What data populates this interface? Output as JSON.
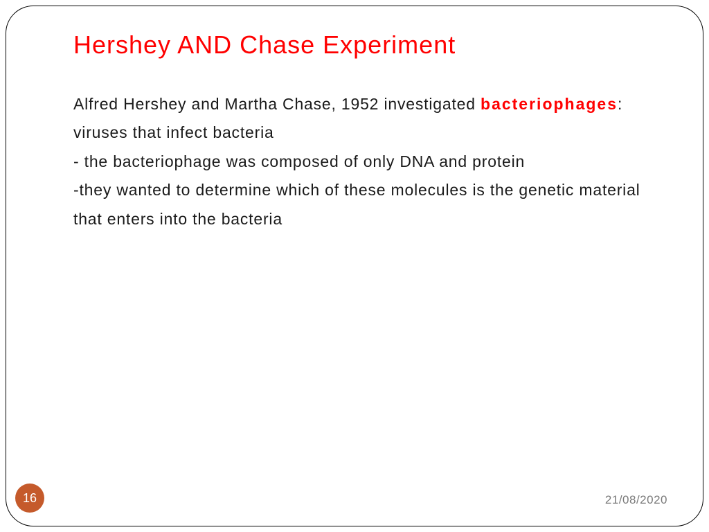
{
  "slide": {
    "title": "Hershey  AND  Chase Experiment",
    "title_color": "#ff0000",
    "title_fontsize": 36,
    "body": {
      "line1_pre": "Alfred Hershey and Martha Chase, 1952   investigated ",
      "highlight": "bacteriophages",
      "line1_post": ": viruses that infect bacteria",
      "line2": "- the bacteriophage was composed of only DNA and protein",
      "line3": "-they wanted to determine which of these molecules is the genetic material that enters into the bacteria",
      "text_color": "#1a1a1a",
      "highlight_color": "#ff0000",
      "fontsize": 23
    },
    "page_number": "16",
    "page_badge_color": "#c55a2b",
    "date": "21/08/2020",
    "background_color": "#ffffff",
    "border_color": "#000000",
    "border_radius": 40
  }
}
